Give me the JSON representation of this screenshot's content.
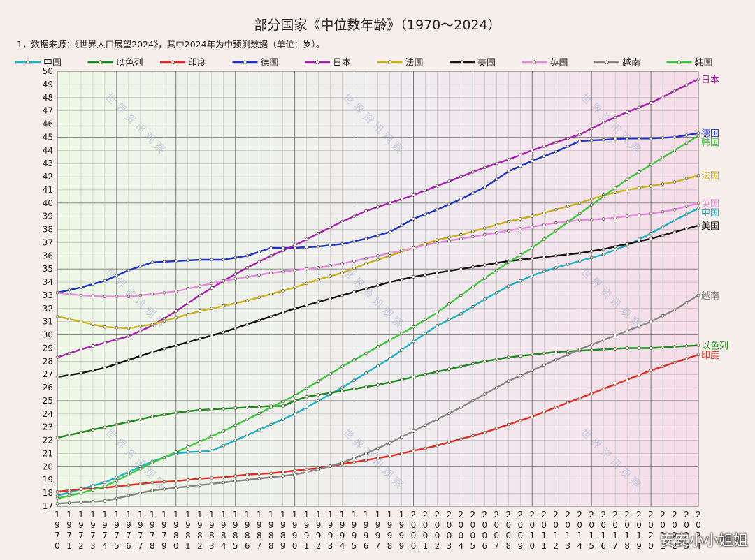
{
  "chart_data": {
    "type": "line",
    "title": "部分国家《中位数年龄》（1970～2024）",
    "subtitle": "1，数据来源：《世界人口展望2024》，其中2024年为中预测数据（单位：岁）。",
    "ylim": [
      17,
      50
    ],
    "y_ticks": [
      17,
      18,
      19,
      20,
      21,
      22,
      23,
      24,
      25,
      26,
      27,
      28,
      29,
      30,
      31,
      32,
      33,
      34,
      35,
      36,
      37,
      38,
      39,
      40,
      41,
      42,
      43,
      44,
      45,
      46,
      47,
      48,
      49,
      50
    ],
    "x": [
      1970,
      1971,
      1972,
      1973,
      1974,
      1975,
      1976,
      1977,
      1978,
      1979,
      1980,
      1981,
      1982,
      1983,
      1984,
      1985,
      1986,
      1987,
      1988,
      1989,
      1990,
      1991,
      1992,
      1993,
      1994,
      1995,
      1996,
      1997,
      1998,
      1999,
      2000,
      2001,
      2002,
      2003,
      2004,
      2005,
      2006,
      2007,
      2008,
      2009,
      2010,
      2011,
      2012,
      2013,
      2014,
      2015,
      2016,
      2017,
      2018,
      2019,
      2020,
      2021,
      2022,
      2023,
      2024
    ],
    "grid": true,
    "legend_position": "top",
    "series": [
      {
        "name": "中国",
        "color": "#19b3c8",
        "anchors": [
          [
            1970,
            17.8
          ],
          [
            1972,
            18.3
          ],
          [
            1974,
            18.8
          ],
          [
            1976,
            19.6
          ],
          [
            1978,
            20.4
          ],
          [
            1980,
            21.0
          ],
          [
            1981,
            21.1
          ],
          [
            1983,
            21.2
          ],
          [
            1984,
            21.6
          ],
          [
            1986,
            22.4
          ],
          [
            1988,
            23.2
          ],
          [
            1990,
            24.0
          ],
          [
            1992,
            25.0
          ],
          [
            1994,
            26.0
          ],
          [
            1996,
            27.1
          ],
          [
            1998,
            28.2
          ],
          [
            2000,
            29.5
          ],
          [
            2002,
            30.7
          ],
          [
            2004,
            31.6
          ],
          [
            2006,
            32.7
          ],
          [
            2008,
            33.7
          ],
          [
            2010,
            34.5
          ],
          [
            2012,
            35.1
          ],
          [
            2014,
            35.6
          ],
          [
            2016,
            36.1
          ],
          [
            2018,
            36.8
          ],
          [
            2020,
            37.7
          ],
          [
            2022,
            38.7
          ],
          [
            2024,
            39.6
          ]
        ]
      },
      {
        "name": "以色列",
        "color": "#1a8a1a",
        "anchors": [
          [
            1970,
            22.2
          ],
          [
            1972,
            22.6
          ],
          [
            1974,
            23.0
          ],
          [
            1976,
            23.4
          ],
          [
            1978,
            23.8
          ],
          [
            1980,
            24.1
          ],
          [
            1982,
            24.3
          ],
          [
            1984,
            24.4
          ],
          [
            1986,
            24.5
          ],
          [
            1988,
            24.6
          ],
          [
            1989,
            24.6
          ],
          [
            1990,
            25.0
          ],
          [
            1991,
            25.3
          ],
          [
            1993,
            25.6
          ],
          [
            1995,
            25.9
          ],
          [
            1997,
            26.2
          ],
          [
            2000,
            26.8
          ],
          [
            2002,
            27.2
          ],
          [
            2004,
            27.6
          ],
          [
            2006,
            28.0
          ],
          [
            2008,
            28.3
          ],
          [
            2010,
            28.5
          ],
          [
            2012,
            28.7
          ],
          [
            2014,
            28.8
          ],
          [
            2016,
            28.9
          ],
          [
            2018,
            29.0
          ],
          [
            2020,
            29.0
          ],
          [
            2022,
            29.1
          ],
          [
            2024,
            29.2
          ]
        ]
      },
      {
        "name": "印度",
        "color": "#e02a22",
        "anchors": [
          [
            1970,
            18.1
          ],
          [
            1972,
            18.3
          ],
          [
            1974,
            18.4
          ],
          [
            1976,
            18.6
          ],
          [
            1978,
            18.8
          ],
          [
            1980,
            18.9
          ],
          [
            1982,
            19.1
          ],
          [
            1984,
            19.2
          ],
          [
            1986,
            19.4
          ],
          [
            1988,
            19.5
          ],
          [
            1990,
            19.7
          ],
          [
            1992,
            19.9
          ],
          [
            1994,
            20.2
          ],
          [
            1996,
            20.5
          ],
          [
            1998,
            20.8
          ],
          [
            2000,
            21.2
          ],
          [
            2002,
            21.6
          ],
          [
            2004,
            22.1
          ],
          [
            2006,
            22.6
          ],
          [
            2008,
            23.2
          ],
          [
            2010,
            23.8
          ],
          [
            2012,
            24.5
          ],
          [
            2014,
            25.2
          ],
          [
            2016,
            25.9
          ],
          [
            2018,
            26.6
          ],
          [
            2020,
            27.3
          ],
          [
            2022,
            27.9
          ],
          [
            2024,
            28.5
          ]
        ]
      },
      {
        "name": "德国",
        "color": "#1a32c8",
        "anchors": [
          [
            1970,
            33.2
          ],
          [
            1972,
            33.6
          ],
          [
            1974,
            34.1
          ],
          [
            1976,
            34.9
          ],
          [
            1978,
            35.5
          ],
          [
            1980,
            35.6
          ],
          [
            1982,
            35.7
          ],
          [
            1984,
            35.7
          ],
          [
            1986,
            36.0
          ],
          [
            1988,
            36.6
          ],
          [
            1990,
            36.6
          ],
          [
            1992,
            36.7
          ],
          [
            1994,
            36.9
          ],
          [
            1996,
            37.3
          ],
          [
            1998,
            37.8
          ],
          [
            2000,
            38.8
          ],
          [
            2002,
            39.5
          ],
          [
            2004,
            40.3
          ],
          [
            2006,
            41.2
          ],
          [
            2008,
            42.4
          ],
          [
            2010,
            43.2
          ],
          [
            2012,
            43.9
          ],
          [
            2014,
            44.7
          ],
          [
            2016,
            44.8
          ],
          [
            2018,
            44.9
          ],
          [
            2020,
            44.9
          ],
          [
            2022,
            45.0
          ],
          [
            2024,
            45.3
          ]
        ]
      },
      {
        "name": "日本",
        "color": "#a81fb0",
        "anchors": [
          [
            1970,
            28.3
          ],
          [
            1972,
            28.9
          ],
          [
            1974,
            29.4
          ],
          [
            1976,
            29.9
          ],
          [
            1978,
            30.7
          ],
          [
            1980,
            31.8
          ],
          [
            1982,
            33.0
          ],
          [
            1984,
            34.1
          ],
          [
            1986,
            35.1
          ],
          [
            1988,
            36.0
          ],
          [
            1990,
            36.8
          ],
          [
            1992,
            37.7
          ],
          [
            1994,
            38.6
          ],
          [
            1996,
            39.4
          ],
          [
            1998,
            40.0
          ],
          [
            2000,
            40.6
          ],
          [
            2002,
            41.3
          ],
          [
            2004,
            42.0
          ],
          [
            2006,
            42.7
          ],
          [
            2008,
            43.3
          ],
          [
            2010,
            44.0
          ],
          [
            2012,
            44.6
          ],
          [
            2014,
            45.2
          ],
          [
            2016,
            46.1
          ],
          [
            2018,
            46.9
          ],
          [
            2020,
            47.6
          ],
          [
            2022,
            48.5
          ],
          [
            2024,
            49.4
          ]
        ]
      },
      {
        "name": "法国",
        "color": "#c9b318",
        "anchors": [
          [
            1970,
            31.4
          ],
          [
            1972,
            31.0
          ],
          [
            1974,
            30.6
          ],
          [
            1976,
            30.5
          ],
          [
            1978,
            30.8
          ],
          [
            1980,
            31.3
          ],
          [
            1982,
            31.8
          ],
          [
            1984,
            32.2
          ],
          [
            1986,
            32.6
          ],
          [
            1988,
            33.1
          ],
          [
            1990,
            33.6
          ],
          [
            1992,
            34.2
          ],
          [
            1994,
            34.7
          ],
          [
            1996,
            35.4
          ],
          [
            1998,
            36.0
          ],
          [
            2000,
            36.6
          ],
          [
            2002,
            37.2
          ],
          [
            2004,
            37.6
          ],
          [
            2006,
            38.1
          ],
          [
            2008,
            38.6
          ],
          [
            2010,
            39.0
          ],
          [
            2012,
            39.5
          ],
          [
            2014,
            40.0
          ],
          [
            2016,
            40.6
          ],
          [
            2018,
            41.0
          ],
          [
            2020,
            41.3
          ],
          [
            2022,
            41.6
          ],
          [
            2024,
            42.1
          ]
        ]
      },
      {
        "name": "美国",
        "color": "#111111",
        "anchors": [
          [
            1970,
            26.8
          ],
          [
            1972,
            27.1
          ],
          [
            1974,
            27.5
          ],
          [
            1976,
            28.1
          ],
          [
            1978,
            28.7
          ],
          [
            1980,
            29.2
          ],
          [
            1982,
            29.7
          ],
          [
            1984,
            30.2
          ],
          [
            1986,
            30.8
          ],
          [
            1988,
            31.4
          ],
          [
            1990,
            32.0
          ],
          [
            1992,
            32.5
          ],
          [
            1994,
            33.0
          ],
          [
            1996,
            33.5
          ],
          [
            1998,
            34.0
          ],
          [
            2000,
            34.4
          ],
          [
            2002,
            34.7
          ],
          [
            2004,
            35.0
          ],
          [
            2006,
            35.3
          ],
          [
            2008,
            35.6
          ],
          [
            2010,
            35.8
          ],
          [
            2012,
            36.0
          ],
          [
            2014,
            36.2
          ],
          [
            2016,
            36.5
          ],
          [
            2018,
            36.9
          ],
          [
            2020,
            37.3
          ],
          [
            2022,
            37.8
          ],
          [
            2024,
            38.3
          ]
        ]
      },
      {
        "name": "英国",
        "color": "#e48be0",
        "anchors": [
          [
            1970,
            33.2
          ],
          [
            1972,
            33.0
          ],
          [
            1974,
            32.9
          ],
          [
            1976,
            32.9
          ],
          [
            1978,
            33.1
          ],
          [
            1980,
            33.3
          ],
          [
            1982,
            33.7
          ],
          [
            1984,
            34.1
          ],
          [
            1986,
            34.4
          ],
          [
            1988,
            34.7
          ],
          [
            1990,
            34.9
          ],
          [
            1992,
            35.1
          ],
          [
            1994,
            35.4
          ],
          [
            1996,
            35.8
          ],
          [
            1998,
            36.2
          ],
          [
            2000,
            36.6
          ],
          [
            2002,
            37.0
          ],
          [
            2004,
            37.3
          ],
          [
            2006,
            37.6
          ],
          [
            2008,
            37.9
          ],
          [
            2010,
            38.2
          ],
          [
            2012,
            38.5
          ],
          [
            2014,
            38.7
          ],
          [
            2016,
            38.8
          ],
          [
            2018,
            39.0
          ],
          [
            2020,
            39.2
          ],
          [
            2022,
            39.5
          ],
          [
            2024,
            40.0
          ]
        ]
      },
      {
        "name": "越南",
        "color": "#858585",
        "anchors": [
          [
            1970,
            17.2
          ],
          [
            1972,
            17.3
          ],
          [
            1974,
            17.4
          ],
          [
            1976,
            17.8
          ],
          [
            1978,
            18.2
          ],
          [
            1980,
            18.4
          ],
          [
            1982,
            18.6
          ],
          [
            1984,
            18.8
          ],
          [
            1986,
            19.0
          ],
          [
            1988,
            19.2
          ],
          [
            1990,
            19.4
          ],
          [
            1992,
            19.8
          ],
          [
            1994,
            20.3
          ],
          [
            1996,
            21.0
          ],
          [
            1998,
            21.8
          ],
          [
            2000,
            22.7
          ],
          [
            2002,
            23.6
          ],
          [
            2004,
            24.5
          ],
          [
            2006,
            25.5
          ],
          [
            2008,
            26.5
          ],
          [
            2010,
            27.3
          ],
          [
            2012,
            28.1
          ],
          [
            2014,
            28.9
          ],
          [
            2016,
            29.6
          ],
          [
            2018,
            30.3
          ],
          [
            2020,
            31.0
          ],
          [
            2022,
            31.9
          ],
          [
            2024,
            33.0
          ]
        ]
      },
      {
        "name": "韩国",
        "color": "#3cc83c",
        "anchors": [
          [
            1970,
            17.6
          ],
          [
            1972,
            18.0
          ],
          [
            1974,
            18.5
          ],
          [
            1976,
            19.4
          ],
          [
            1978,
            20.3
          ],
          [
            1980,
            21.1
          ],
          [
            1982,
            21.9
          ],
          [
            1984,
            22.7
          ],
          [
            1986,
            23.6
          ],
          [
            1988,
            24.5
          ],
          [
            1990,
            25.4
          ],
          [
            1992,
            26.5
          ],
          [
            1994,
            27.6
          ],
          [
            1996,
            28.6
          ],
          [
            1998,
            29.6
          ],
          [
            2000,
            30.6
          ],
          [
            2002,
            31.7
          ],
          [
            2004,
            33.0
          ],
          [
            2006,
            34.3
          ],
          [
            2008,
            35.5
          ],
          [
            2010,
            36.6
          ],
          [
            2012,
            37.9
          ],
          [
            2014,
            39.2
          ],
          [
            2016,
            40.5
          ],
          [
            2018,
            41.8
          ],
          [
            2020,
            42.9
          ],
          [
            2022,
            44.0
          ],
          [
            2024,
            45.1
          ]
        ]
      }
    ]
  },
  "watermarks": [
    "世界资讯观察",
    "安安小小姐姐"
  ]
}
